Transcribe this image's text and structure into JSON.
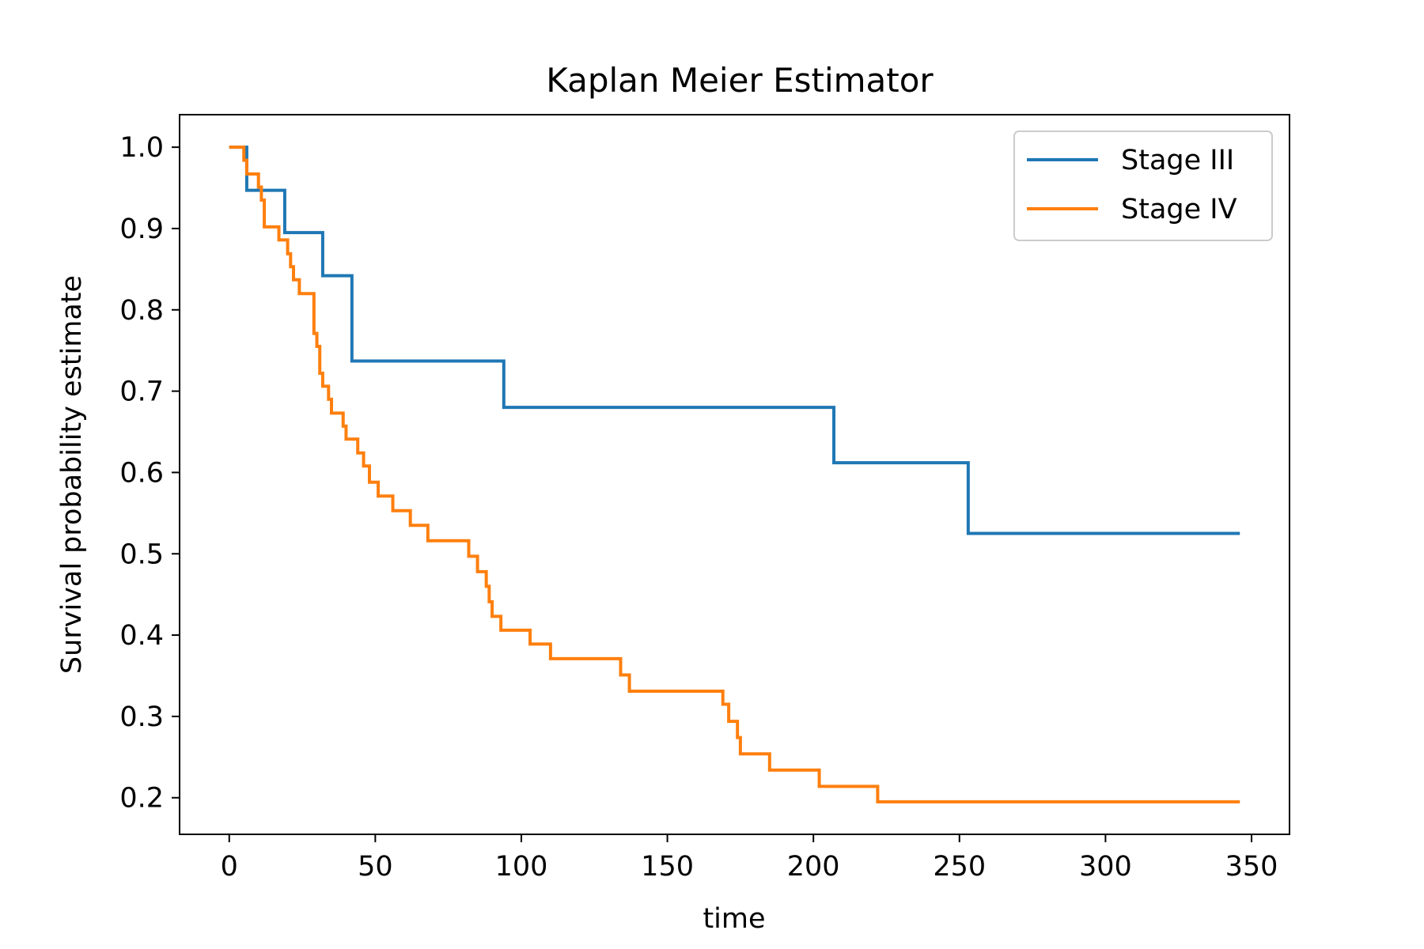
{
  "chart_data": {
    "type": "line",
    "step": true,
    "title": "Kaplan Meier Estimator",
    "xlabel": "time",
    "ylabel": "Survival probability estimate",
    "xlim": [
      -17,
      363
    ],
    "ylim": [
      0.155,
      1.04
    ],
    "xticks": [
      0,
      50,
      100,
      150,
      200,
      250,
      300,
      350
    ],
    "xtick_labels": [
      "0",
      "50",
      "100",
      "150",
      "200",
      "250",
      "300",
      "350"
    ],
    "yticks": [
      0.2,
      0.3,
      0.4,
      0.5,
      0.6,
      0.7,
      0.8,
      0.9,
      1.0
    ],
    "ytick_labels": [
      "0.2",
      "0.3",
      "0.4",
      "0.5",
      "0.6",
      "0.7",
      "0.8",
      "0.9",
      "1.0"
    ],
    "grid": false,
    "legend_position": "upper right",
    "series": [
      {
        "name": "Stage III",
        "color": "#1f77b4",
        "x": [
          6,
          19,
          32,
          42,
          94,
          207,
          253,
          346
        ],
        "y": [
          0.947,
          0.895,
          0.842,
          0.737,
          0.68,
          0.612,
          0.525,
          0.525
        ]
      },
      {
        "name": "Stage IV",
        "color": "#ff7f0e",
        "x": [
          0,
          5,
          6,
          10,
          11,
          12,
          17,
          20,
          21,
          22,
          24,
          29,
          30,
          31,
          32,
          34,
          35,
          39,
          40,
          44,
          46,
          48,
          51,
          56,
          62,
          68,
          82,
          85,
          88,
          89,
          90,
          93,
          103,
          110,
          134,
          137,
          169,
          171,
          174,
          175,
          185,
          202,
          222,
          346
        ],
        "y": [
          1.0,
          0.984,
          0.967,
          0.951,
          0.935,
          0.902,
          0.886,
          0.869,
          0.853,
          0.837,
          0.82,
          0.771,
          0.755,
          0.722,
          0.706,
          0.69,
          0.673,
          0.657,
          0.641,
          0.624,
          0.608,
          0.588,
          0.571,
          0.553,
          0.535,
          0.516,
          0.497,
          0.478,
          0.46,
          0.441,
          0.423,
          0.406,
          0.389,
          0.371,
          0.351,
          0.331,
          0.315,
          0.294,
          0.274,
          0.254,
          0.234,
          0.214,
          0.195,
          0.195
        ]
      }
    ]
  }
}
